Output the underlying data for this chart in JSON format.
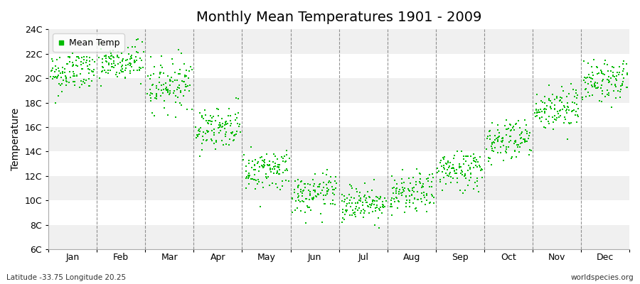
{
  "title": "Monthly Mean Temperatures 1901 - 2009",
  "ylabel": "Temperature",
  "xlabel_labels": [
    "Jan",
    "Feb",
    "Mar",
    "Apr",
    "May",
    "Jun",
    "Jul",
    "Aug",
    "Sep",
    "Oct",
    "Nov",
    "Dec"
  ],
  "bottom_left": "Latitude -33.75 Longitude 20.25",
  "bottom_right": "worldspecies.org",
  "legend_label": "Mean Temp",
  "ylim": [
    6,
    24
  ],
  "yticks": [
    6,
    8,
    10,
    12,
    14,
    16,
    18,
    20,
    22,
    24
  ],
  "ytick_labels": [
    "6C",
    "8C",
    "10C",
    "12C",
    "14C",
    "16C",
    "18C",
    "20C",
    "22C",
    "24C"
  ],
  "monthly_means": [
    20.5,
    21.2,
    19.5,
    16.0,
    12.5,
    10.5,
    9.8,
    10.5,
    12.5,
    15.0,
    17.5,
    19.8
  ],
  "monthly_std": [
    0.9,
    0.85,
    1.0,
    0.85,
    0.85,
    0.8,
    0.75,
    0.8,
    0.85,
    0.9,
    0.9,
    0.85
  ],
  "monthly_trend": [
    0.003,
    0.003,
    0.003,
    0.003,
    0.003,
    0.003,
    0.003,
    0.003,
    0.003,
    0.003,
    0.003,
    0.003
  ],
  "n_years": 109,
  "dot_color": "#00BB00",
  "dot_size": 3,
  "bg_color": "#ffffff",
  "band_colors": [
    "#f0f0f0",
    "#ffffff"
  ],
  "grid_color": "#666666",
  "title_fontsize": 14,
  "axis_fontsize": 10,
  "tick_fontsize": 9
}
